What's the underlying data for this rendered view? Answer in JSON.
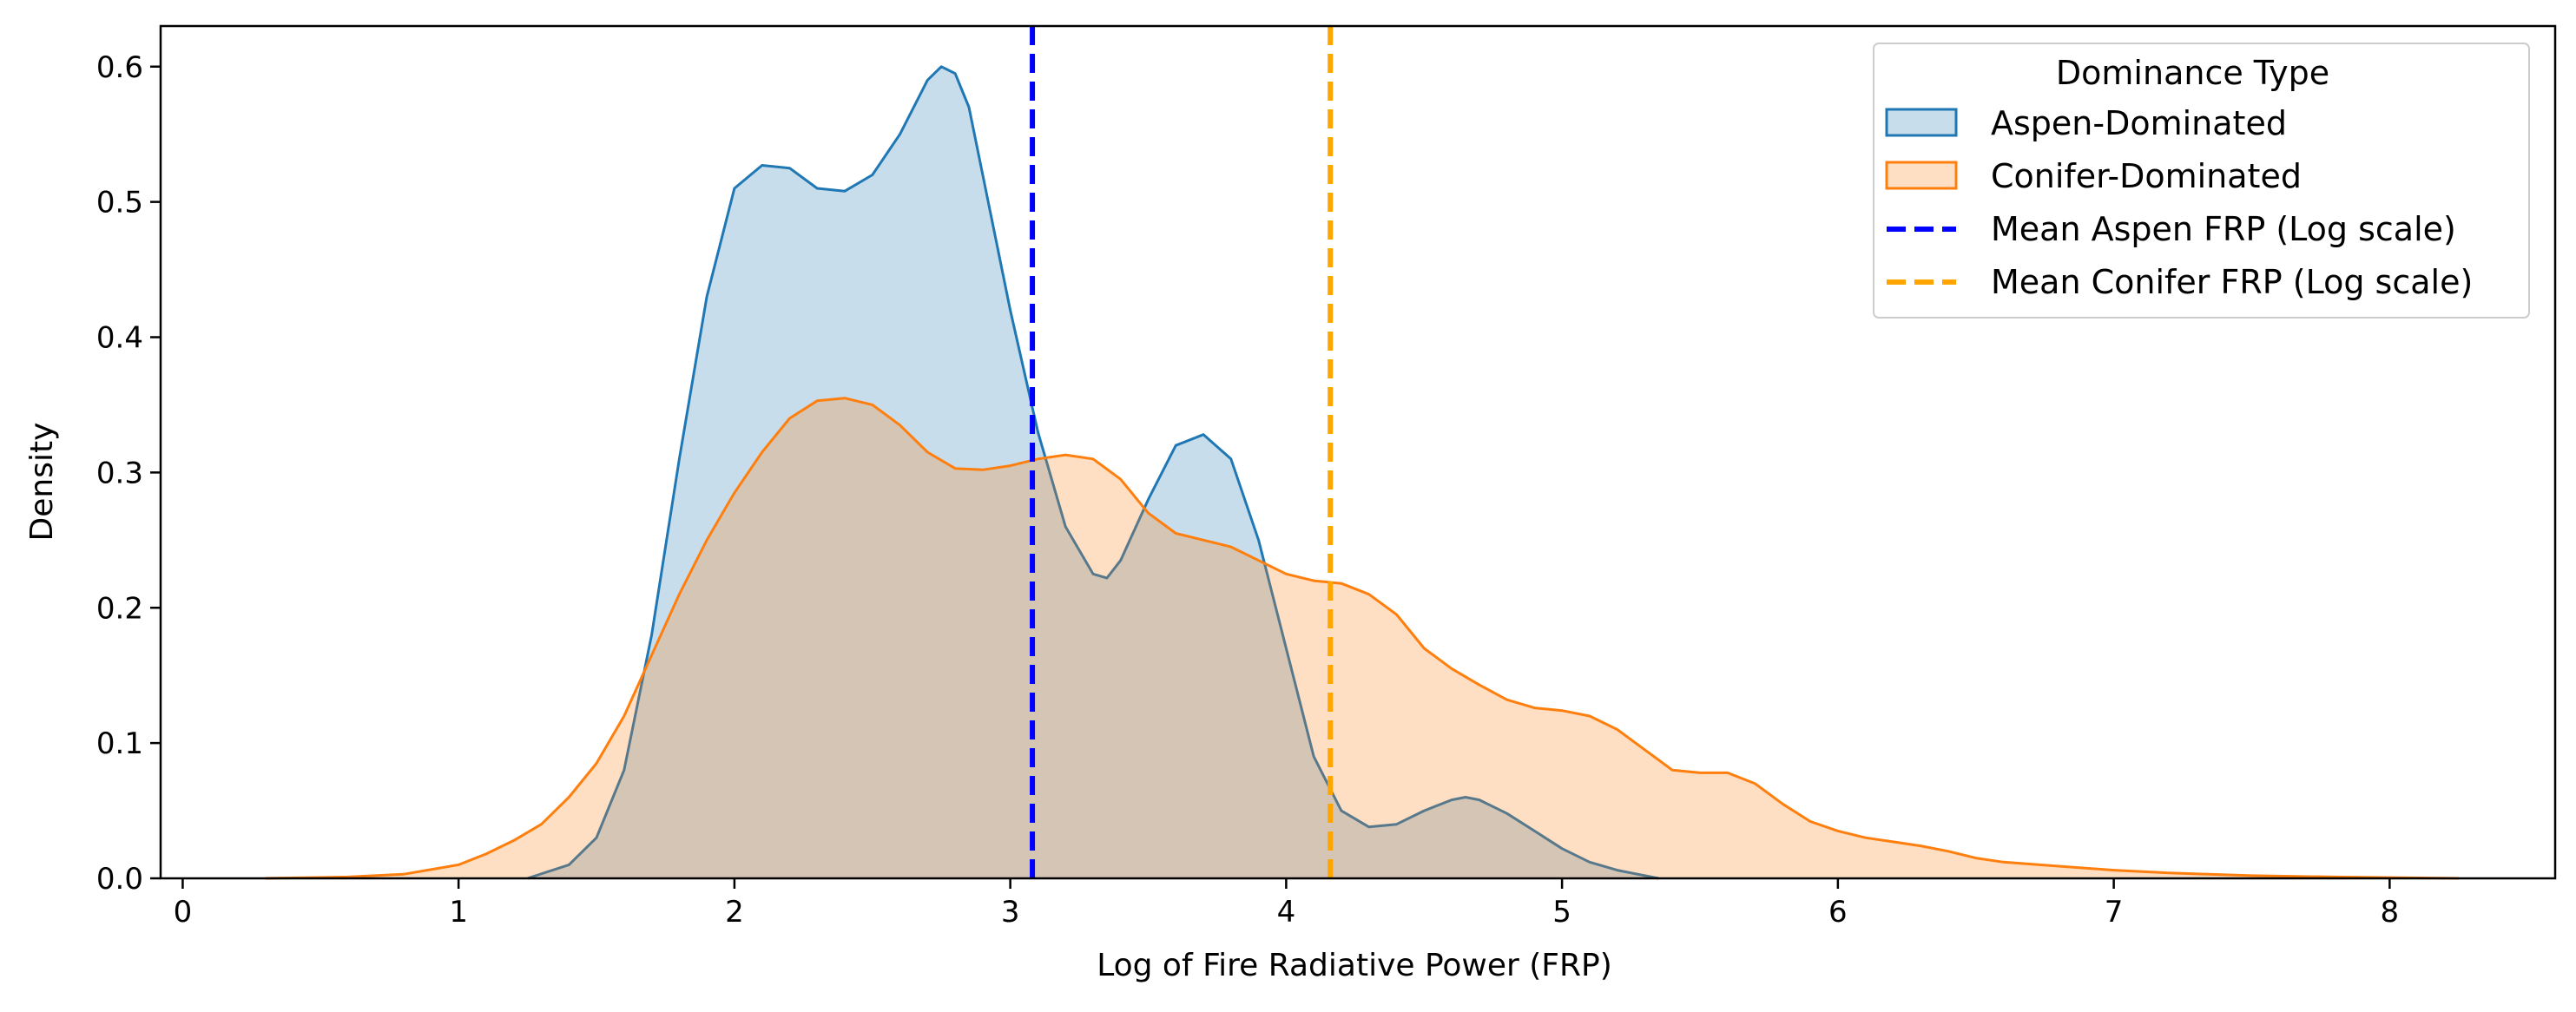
{
  "chart_data": {
    "type": "area",
    "xlabel": "Log of Fire Radiative Power (FRP)",
    "ylabel": "Density",
    "xlim": [
      -0.08,
      8.6
    ],
    "ylim": [
      0,
      0.63
    ],
    "xticks": [
      0,
      1,
      2,
      3,
      4,
      5,
      6,
      7,
      8
    ],
    "yticks": [
      0.0,
      0.1,
      0.2,
      0.3,
      0.4,
      0.5,
      0.6
    ],
    "ytick_labels": [
      "0.0",
      "0.1",
      "0.2",
      "0.3",
      "0.4",
      "0.5",
      "0.6"
    ],
    "grid": false,
    "legend": {
      "title": "Dominance Type",
      "placement": "top-right"
    },
    "series": [
      {
        "name": "Aspen-Dominated",
        "color": "#1f77b4",
        "fill": "#1f77b4",
        "fill_opacity": 0.25,
        "points": [
          [
            1.25,
            0.0
          ],
          [
            1.4,
            0.01
          ],
          [
            1.5,
            0.03
          ],
          [
            1.6,
            0.08
          ],
          [
            1.7,
            0.18
          ],
          [
            1.8,
            0.31
          ],
          [
            1.9,
            0.43
          ],
          [
            2.0,
            0.51
          ],
          [
            2.1,
            0.527
          ],
          [
            2.2,
            0.525
          ],
          [
            2.3,
            0.51
          ],
          [
            2.4,
            0.508
          ],
          [
            2.5,
            0.52
          ],
          [
            2.6,
            0.55
          ],
          [
            2.7,
            0.59
          ],
          [
            2.75,
            0.6
          ],
          [
            2.8,
            0.595
          ],
          [
            2.85,
            0.57
          ],
          [
            2.9,
            0.52
          ],
          [
            3.0,
            0.42
          ],
          [
            3.1,
            0.33
          ],
          [
            3.2,
            0.26
          ],
          [
            3.3,
            0.225
          ],
          [
            3.35,
            0.222
          ],
          [
            3.4,
            0.235
          ],
          [
            3.5,
            0.28
          ],
          [
            3.6,
            0.32
          ],
          [
            3.7,
            0.328
          ],
          [
            3.8,
            0.31
          ],
          [
            3.9,
            0.25
          ],
          [
            4.0,
            0.17
          ],
          [
            4.1,
            0.09
          ],
          [
            4.2,
            0.05
          ],
          [
            4.3,
            0.038
          ],
          [
            4.4,
            0.04
          ],
          [
            4.5,
            0.05
          ],
          [
            4.6,
            0.058
          ],
          [
            4.65,
            0.06
          ],
          [
            4.7,
            0.058
          ],
          [
            4.8,
            0.048
          ],
          [
            4.9,
            0.035
          ],
          [
            5.0,
            0.022
          ],
          [
            5.1,
            0.012
          ],
          [
            5.2,
            0.006
          ],
          [
            5.3,
            0.002
          ],
          [
            5.35,
            0.0
          ]
        ]
      },
      {
        "name": "Conifer-Dominated",
        "color": "#ff7f0e",
        "fill": "#ff7f0e",
        "fill_opacity": 0.25,
        "points": [
          [
            0.3,
            0.0
          ],
          [
            0.6,
            0.001
          ],
          [
            0.8,
            0.003
          ],
          [
            1.0,
            0.01
          ],
          [
            1.1,
            0.018
          ],
          [
            1.2,
            0.028
          ],
          [
            1.3,
            0.04
          ],
          [
            1.4,
            0.06
          ],
          [
            1.5,
            0.085
          ],
          [
            1.6,
            0.12
          ],
          [
            1.7,
            0.165
          ],
          [
            1.8,
            0.21
          ],
          [
            1.9,
            0.25
          ],
          [
            2.0,
            0.285
          ],
          [
            2.1,
            0.315
          ],
          [
            2.2,
            0.34
          ],
          [
            2.3,
            0.353
          ],
          [
            2.4,
            0.355
          ],
          [
            2.5,
            0.35
          ],
          [
            2.6,
            0.335
          ],
          [
            2.7,
            0.315
          ],
          [
            2.8,
            0.303
          ],
          [
            2.9,
            0.302
          ],
          [
            3.0,
            0.305
          ],
          [
            3.1,
            0.31
          ],
          [
            3.2,
            0.313
          ],
          [
            3.3,
            0.31
          ],
          [
            3.4,
            0.295
          ],
          [
            3.5,
            0.27
          ],
          [
            3.6,
            0.255
          ],
          [
            3.7,
            0.25
          ],
          [
            3.8,
            0.245
          ],
          [
            3.9,
            0.235
          ],
          [
            4.0,
            0.225
          ],
          [
            4.1,
            0.22
          ],
          [
            4.2,
            0.218
          ],
          [
            4.3,
            0.21
          ],
          [
            4.4,
            0.195
          ],
          [
            4.5,
            0.17
          ],
          [
            4.6,
            0.155
          ],
          [
            4.7,
            0.143
          ],
          [
            4.8,
            0.132
          ],
          [
            4.9,
            0.126
          ],
          [
            5.0,
            0.124
          ],
          [
            5.1,
            0.12
          ],
          [
            5.2,
            0.11
          ],
          [
            5.3,
            0.095
          ],
          [
            5.4,
            0.08
          ],
          [
            5.5,
            0.078
          ],
          [
            5.6,
            0.078
          ],
          [
            5.7,
            0.07
          ],
          [
            5.8,
            0.055
          ],
          [
            5.9,
            0.042
          ],
          [
            6.0,
            0.035
          ],
          [
            6.1,
            0.03
          ],
          [
            6.2,
            0.027
          ],
          [
            6.3,
            0.024
          ],
          [
            6.4,
            0.02
          ],
          [
            6.5,
            0.015
          ],
          [
            6.6,
            0.012
          ],
          [
            6.8,
            0.009
          ],
          [
            7.0,
            0.006
          ],
          [
            7.2,
            0.004
          ],
          [
            7.5,
            0.002
          ],
          [
            7.8,
            0.001
          ],
          [
            8.25,
            0.0
          ]
        ]
      }
    ],
    "vlines": [
      {
        "name": "Mean Aspen FRP (Log scale)",
        "x": 3.08,
        "color": "#0000ff",
        "style": "dashed"
      },
      {
        "name": "Mean Conifer FRP (Log scale)",
        "x": 4.16,
        "color": "#ffa500",
        "style": "dashed"
      }
    ]
  }
}
